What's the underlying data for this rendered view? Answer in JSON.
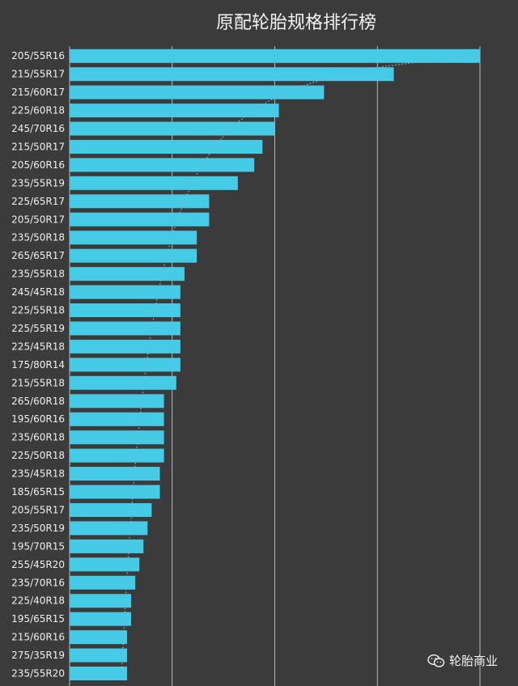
{
  "chart_data": {
    "type": "bar",
    "orientation": "horizontal",
    "title": "原配轮胎规格排行榜",
    "categories": [
      "205/55R16",
      "215/55R17",
      "215/60R17",
      "225/60R18",
      "245/70R16",
      "215/50R17",
      "205/60R16",
      "235/55R19",
      "225/65R17",
      "205/50R17",
      "235/50R18",
      "265/65R17",
      "235/55R18",
      "245/45R18",
      "225/55R18",
      "225/55R19",
      "225/45R18",
      "175/80R14",
      "215/55R18",
      "265/60R18",
      "195/60R16",
      "235/60R18",
      "225/50R18",
      "235/45R18",
      "185/65R15",
      "205/55R17",
      "235/50R19",
      "195/70R15",
      "255/45R20",
      "235/70R16",
      "225/40R18",
      "195/65R15",
      "215/60R16",
      "275/35R19",
      "235/55R20"
    ],
    "values": [
      100,
      79,
      62,
      51,
      50,
      47,
      45,
      41,
      34,
      34,
      31,
      31,
      28,
      27,
      27,
      27,
      27,
      27,
      26,
      23,
      23,
      23,
      23,
      22,
      22,
      20,
      19,
      18,
      17,
      16,
      15,
      15,
      14,
      14,
      14
    ],
    "xlim": [
      0,
      100
    ],
    "xticks": [
      25,
      50,
      75,
      100
    ],
    "grid": true,
    "trendline": "dotted curve"
  },
  "colors": {
    "bar": "#46cbe6",
    "background": "#3c3b3b",
    "grid": "#d8d8d8",
    "trend": "#7ab8e0"
  },
  "watermark": {
    "icon": "wechat-icon",
    "text": "轮胎商业"
  }
}
